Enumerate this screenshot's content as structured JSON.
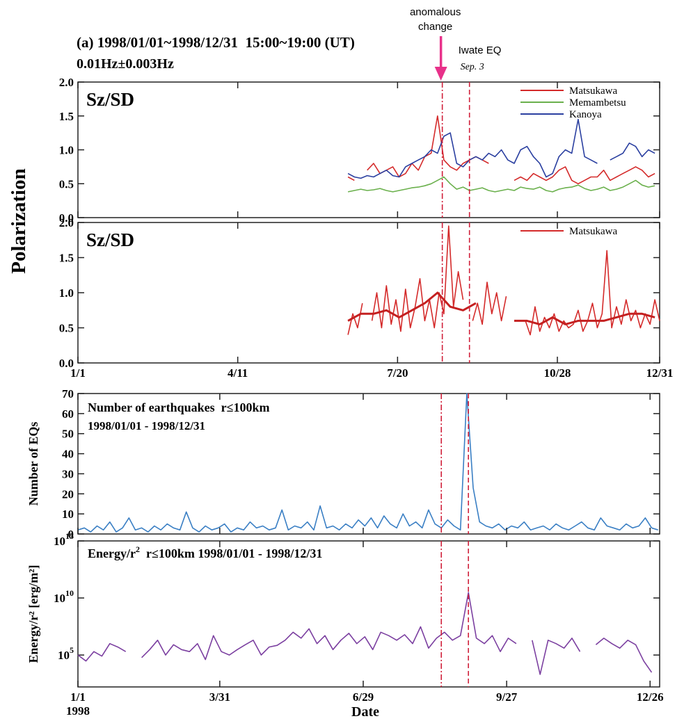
{
  "header": {
    "title": "(a) 1998/01/01~1998/12/31  15:00~19:00 (UT)",
    "subtitle": "0.01Hz±0.003Hz",
    "ylabel": "Polarization"
  },
  "events": [
    {
      "label": [
        "anomalous",
        "change"
      ],
      "x": 229,
      "color": "#d0203a",
      "style": "dash-dot",
      "arrow_color": "#e8318a"
    },
    {
      "label": "Iwate EQ",
      "date": "Sep. 3",
      "x": 246,
      "color": "#d0203a",
      "style": "dashed"
    }
  ],
  "chart_data": [
    {
      "type": "line",
      "title": "Sz/SD",
      "legend": "upper right",
      "xlim": [
        1,
        365
      ],
      "ylim": [
        0,
        2
      ],
      "yticks": [
        {
          "value": 0,
          "label": "0.0"
        },
        0.5,
        {
          "value": 1,
          "label": "1.0"
        },
        1.5,
        {
          "value": 2,
          "label": "2.0"
        }
      ],
      "x": [
        170,
        174,
        178,
        182,
        186,
        190,
        194,
        198,
        202,
        206,
        210,
        214,
        218,
        222,
        226,
        230,
        234,
        238,
        242,
        246,
        250,
        254,
        258,
        262,
        266,
        270,
        274,
        278,
        282,
        286,
        290,
        294,
        298,
        302,
        306,
        310,
        314,
        318,
        322,
        326,
        330,
        334,
        338,
        342,
        346,
        350,
        354,
        358,
        362
      ],
      "series": [
        {
          "name": "Matsukawa",
          "color": "#d42a2a",
          "values": [
            0.6,
            0.55,
            null,
            0.7,
            0.8,
            0.65,
            0.7,
            0.75,
            0.6,
            0.65,
            0.8,
            0.7,
            0.9,
            0.95,
            1.5,
            0.85,
            0.75,
            0.7,
            0.8,
            0.85,
            0.9,
            0.85,
            0.8,
            null,
            null,
            null,
            0.55,
            0.6,
            0.55,
            0.65,
            0.6,
            0.55,
            0.6,
            0.7,
            0.75,
            0.55,
            0.5,
            0.55,
            0.6,
            0.6,
            0.7,
            0.55,
            0.6,
            0.65,
            0.7,
            0.75,
            0.7,
            0.6,
            0.65
          ]
        },
        {
          "name": "Memambetsu",
          "color": "#6ab04c",
          "values": [
            0.38,
            0.4,
            0.42,
            0.4,
            0.41,
            0.43,
            0.4,
            0.38,
            0.4,
            0.42,
            0.44,
            0.45,
            0.47,
            0.5,
            0.55,
            0.6,
            0.5,
            0.42,
            0.45,
            0.4,
            0.42,
            0.44,
            0.4,
            0.38,
            0.4,
            0.42,
            0.4,
            0.45,
            0.43,
            0.42,
            0.45,
            0.4,
            0.38,
            0.42,
            0.44,
            0.45,
            0.48,
            0.43,
            0.4,
            0.42,
            0.45,
            0.4,
            0.42,
            0.45,
            0.5,
            0.55,
            0.48,
            0.45,
            0.47
          ]
        },
        {
          "name": "Kanoya",
          "color": "#2a3fa0",
          "values": [
            0.65,
            0.6,
            0.58,
            0.62,
            0.6,
            0.65,
            0.7,
            0.62,
            0.6,
            0.75,
            0.8,
            0.85,
            0.9,
            1.0,
            0.95,
            1.2,
            1.25,
            0.8,
            0.75,
            0.85,
            0.9,
            0.85,
            0.95,
            0.9,
            1.0,
            0.85,
            0.8,
            1.0,
            1.05,
            0.9,
            0.8,
            0.6,
            0.65,
            0.9,
            1.0,
            0.95,
            1.45,
            0.9,
            0.85,
            0.8,
            null,
            0.85,
            0.9,
            0.95,
            1.1,
            1.05,
            0.9,
            1.0,
            0.95
          ]
        }
      ]
    },
    {
      "type": "line",
      "title": "Sz/SD",
      "legend": "upper right",
      "xlim": [
        1,
        365
      ],
      "ylim": [
        0,
        2
      ],
      "yticks": [
        {
          "value": 0,
          "label": "0.0"
        },
        0.5,
        {
          "value": 1,
          "label": "1.0"
        },
        1.5,
        {
          "value": 2,
          "label": "2.0"
        }
      ],
      "xticks": [
        {
          "value": 1,
          "label": "1/1"
        },
        {
          "value": 101,
          "label": "4/11"
        },
        {
          "value": 201,
          "label": "7/20"
        },
        {
          "value": 301,
          "label": "10/28"
        },
        {
          "value": 365,
          "label": "12/31"
        }
      ],
      "x": [
        170,
        173,
        176,
        179,
        182,
        185,
        188,
        191,
        194,
        197,
        200,
        203,
        206,
        209,
        212,
        215,
        218,
        221,
        224,
        227,
        230,
        233,
        236,
        239,
        242,
        245,
        248,
        251,
        254,
        257,
        260,
        263,
        266,
        269,
        272,
        275,
        278,
        281,
        284,
        287,
        290,
        293,
        296,
        299,
        302,
        305,
        308,
        311,
        314,
        317,
        320,
        323,
        326,
        329,
        332,
        335,
        338,
        341,
        344,
        347,
        350,
        353,
        356,
        359,
        362,
        365
      ],
      "series": [
        {
          "name": "Matsukawa",
          "color": "#d42a2a",
          "values": [
            0.4,
            0.7,
            0.5,
            0.85,
            null,
            0.6,
            1.0,
            0.5,
            1.1,
            0.55,
            0.9,
            0.45,
            1.05,
            0.5,
            0.8,
            1.2,
            0.6,
            0.9,
            0.5,
            1.0,
            0.7,
            1.95,
            0.8,
            1.3,
            0.9,
            null,
            0.6,
            0.85,
            0.55,
            1.15,
            0.7,
            1.0,
            0.6,
            0.95,
            null,
            null,
            null,
            0.6,
            0.4,
            0.8,
            0.45,
            0.65,
            0.5,
            0.7,
            0.45,
            0.6,
            0.5,
            0.55,
            0.75,
            0.45,
            0.6,
            0.85,
            0.5,
            0.7,
            1.6,
            0.5,
            0.8,
            0.55,
            0.9,
            0.6,
            0.75,
            0.5,
            0.7,
            0.55,
            0.9,
            0.6
          ]
        },
        {
          "color": "#c42020",
          "width": 3,
          "x": [
            170,
            178,
            186,
            194,
            202,
            210,
            218,
            226,
            234,
            242,
            250,
            258,
            266,
            274,
            282,
            290,
            298,
            306,
            314,
            322,
            330,
            338,
            346,
            354,
            362
          ],
          "values": [
            0.6,
            0.7,
            0.7,
            0.75,
            0.65,
            0.75,
            0.85,
            1.0,
            0.8,
            0.75,
            0.85,
            null,
            null,
            0.6,
            0.6,
            0.55,
            0.65,
            0.55,
            0.6,
            0.6,
            0.6,
            0.65,
            0.7,
            0.7,
            0.65
          ]
        }
      ]
    },
    {
      "type": "line",
      "title": "Number of earthquakes  r≤100km",
      "subtitle": "1998/01/01 - 1998/12/31",
      "ylabel": "Number of EQs",
      "xlim": [
        1,
        366
      ],
      "ylim": [
        0,
        70
      ],
      "yticks": [
        0,
        10,
        20,
        30,
        40,
        50,
        60,
        70
      ],
      "x": [
        1,
        5,
        9,
        13,
        17,
        21,
        25,
        29,
        33,
        37,
        41,
        45,
        49,
        53,
        57,
        61,
        65,
        69,
        73,
        77,
        81,
        85,
        89,
        93,
        97,
        101,
        105,
        109,
        113,
        117,
        121,
        125,
        129,
        133,
        137,
        141,
        145,
        149,
        153,
        157,
        161,
        165,
        169,
        173,
        177,
        181,
        185,
        189,
        193,
        197,
        201,
        205,
        209,
        213,
        217,
        221,
        225,
        229,
        233,
        237,
        241,
        245,
        249,
        253,
        257,
        261,
        265,
        269,
        273,
        277,
        281,
        285,
        289,
        293,
        297,
        301,
        305,
        309,
        313,
        317,
        321,
        325,
        329,
        333,
        337,
        341,
        345,
        349,
        353,
        357,
        361,
        365
      ],
      "series": [
        {
          "color": "#3a7fc4",
          "values": [
            2,
            3,
            1,
            4,
            2,
            6,
            1,
            3,
            8,
            2,
            3,
            1,
            4,
            2,
            5,
            3,
            2,
            11,
            3,
            1,
            4,
            2,
            3,
            5,
            1,
            3,
            2,
            6,
            3,
            4,
            2,
            3,
            12,
            2,
            4,
            3,
            6,
            2,
            14,
            3,
            4,
            2,
            5,
            3,
            7,
            4,
            8,
            3,
            9,
            5,
            3,
            10,
            4,
            6,
            3,
            12,
            5,
            3,
            7,
            4,
            2,
            70,
            23,
            6,
            4,
            3,
            5,
            2,
            4,
            3,
            6,
            2,
            3,
            4,
            2,
            5,
            3,
            2,
            4,
            6,
            3,
            2,
            8,
            4,
            3,
            2,
            5,
            3,
            4,
            8,
            3,
            2
          ]
        }
      ]
    },
    {
      "type": "line",
      "title": "Energy/r",
      "title_sup": "2",
      "title_rest": "  r≤100km 1998/01/01 - 1998/12/31",
      "ylabel": "Energy/r² [erg/m²]",
      "yscale": "log",
      "xlim": [
        1,
        366
      ],
      "ylim": [
        160,
        1000000000000000.0
      ],
      "yticks": [
        {
          "value": 100000.0,
          "label": "10",
          "exp": "5"
        },
        {
          "value": 10000000000.0,
          "label": "10",
          "exp": "10"
        },
        {
          "value": 1000000000000000.0,
          "label": "10",
          "exp": "15"
        }
      ],
      "xticks": [
        {
          "value": 1,
          "label": "1/1"
        },
        {
          "value": 90,
          "label": "3/31"
        },
        {
          "value": 180,
          "label": "6/29"
        },
        {
          "value": 270,
          "label": "9/27"
        },
        {
          "value": 360,
          "label": "12/26"
        }
      ],
      "year": "1998",
      "xlabel": "Date",
      "x": [
        1,
        6,
        11,
        16,
        21,
        26,
        31,
        36,
        41,
        46,
        51,
        56,
        61,
        66,
        71,
        76,
        81,
        86,
        91,
        96,
        101,
        106,
        111,
        116,
        121,
        126,
        131,
        136,
        141,
        146,
        151,
        156,
        161,
        166,
        171,
        176,
        181,
        186,
        191,
        196,
        201,
        206,
        211,
        216,
        221,
        226,
        231,
        236,
        241,
        246,
        251,
        256,
        261,
        266,
        271,
        276,
        281,
        286,
        291,
        296,
        301,
        306,
        311,
        316,
        321,
        326,
        331,
        336,
        341,
        346,
        351,
        356,
        361
      ],
      "series": [
        {
          "color": "#7b3fa0",
          "values": [
            100000.0,
            30000.0,
            200000.0,
            80000.0,
            1000000.0,
            500000.0,
            200000.0,
            null,
            60000.0,
            300000.0,
            2000000.0,
            100000.0,
            800000.0,
            300000.0,
            200000.0,
            1000000.0,
            40000.0,
            5000000.0,
            200000.0,
            100000.0,
            300000.0,
            800000.0,
            2000000.0,
            100000.0,
            500000.0,
            700000.0,
            2000000.0,
            10000000.0,
            3000000.0,
            20000000.0,
            1000000.0,
            5000000.0,
            300000.0,
            2000000.0,
            8000000.0,
            1000000.0,
            4000000.0,
            300000.0,
            10000000.0,
            5000000.0,
            2000000.0,
            6000000.0,
            1000000.0,
            30000000.0,
            400000.0,
            3000000.0,
            10000000.0,
            2000000.0,
            5000000.0,
            30000000000.0,
            3000000.0,
            1000000.0,
            5000000.0,
            200000.0,
            3000000.0,
            1000000.0,
            null,
            2000000.0,
            2000.0,
            2000000.0,
            1000000.0,
            400000.0,
            3000000.0,
            200000.0,
            null,
            800000.0,
            3000000.0,
            1000000.0,
            400000.0,
            2000000.0,
            800000.0,
            30000.0,
            3000.0
          ]
        }
      ]
    }
  ]
}
